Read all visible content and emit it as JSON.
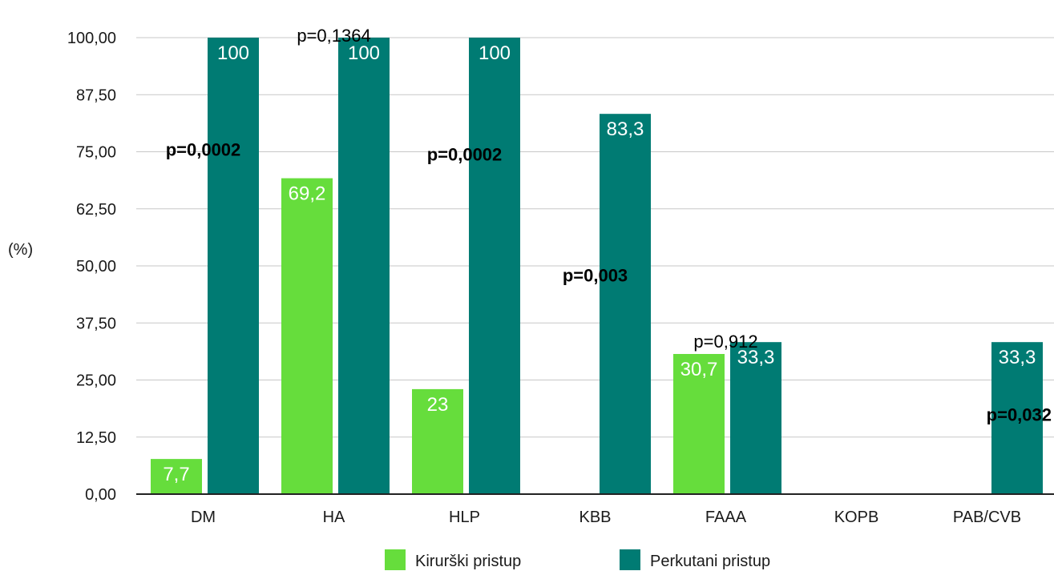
{
  "chart_data": {
    "type": "bar",
    "ylabel": "(%)",
    "ylim": [
      0,
      100
    ],
    "yticks": [
      "0,00",
      "12,50",
      "25,00",
      "37,50",
      "50,00",
      "62,50",
      "75,00",
      "87,50",
      "100,00"
    ],
    "grid": true,
    "legend_placement": "bottom",
    "categories": [
      "DM",
      "HA",
      "HLP",
      "KBB",
      "FAAA",
      "KOPB",
      "PAB/CVB"
    ],
    "series": [
      {
        "name": "Kirurški pristup",
        "color": "#66dd3c",
        "values": [
          7.7,
          69.2,
          23,
          null,
          30.7,
          null,
          null
        ],
        "labels": [
          "7,7",
          "69,2",
          "23",
          "",
          "30,7",
          "",
          ""
        ]
      },
      {
        "name": "Perkutani pristup",
        "color": "#007b73",
        "values": [
          100,
          100,
          100,
          83.3,
          33.3,
          null,
          33.3
        ],
        "labels": [
          "100",
          "100",
          "100",
          "83,3",
          "33,3",
          "",
          "33,3"
        ]
      }
    ],
    "annotations": [
      {
        "category": "DM",
        "text": "p=0,0002",
        "bold": true,
        "y": 75.5
      },
      {
        "category": "HA",
        "text": "p=0,1364",
        "bold": false,
        "y": 100.5
      },
      {
        "category": "HLP",
        "text": "p=0,0002",
        "bold": true,
        "y": 74.5
      },
      {
        "category": "KBB",
        "text": "p=0,003",
        "bold": true,
        "y": 48
      },
      {
        "category": "FAAA",
        "text": "p=0,912",
        "bold": false,
        "y": 33.5
      },
      {
        "category": "PAB/CVB",
        "text": "p=0,032",
        "bold": true,
        "y": 17.5
      }
    ]
  }
}
